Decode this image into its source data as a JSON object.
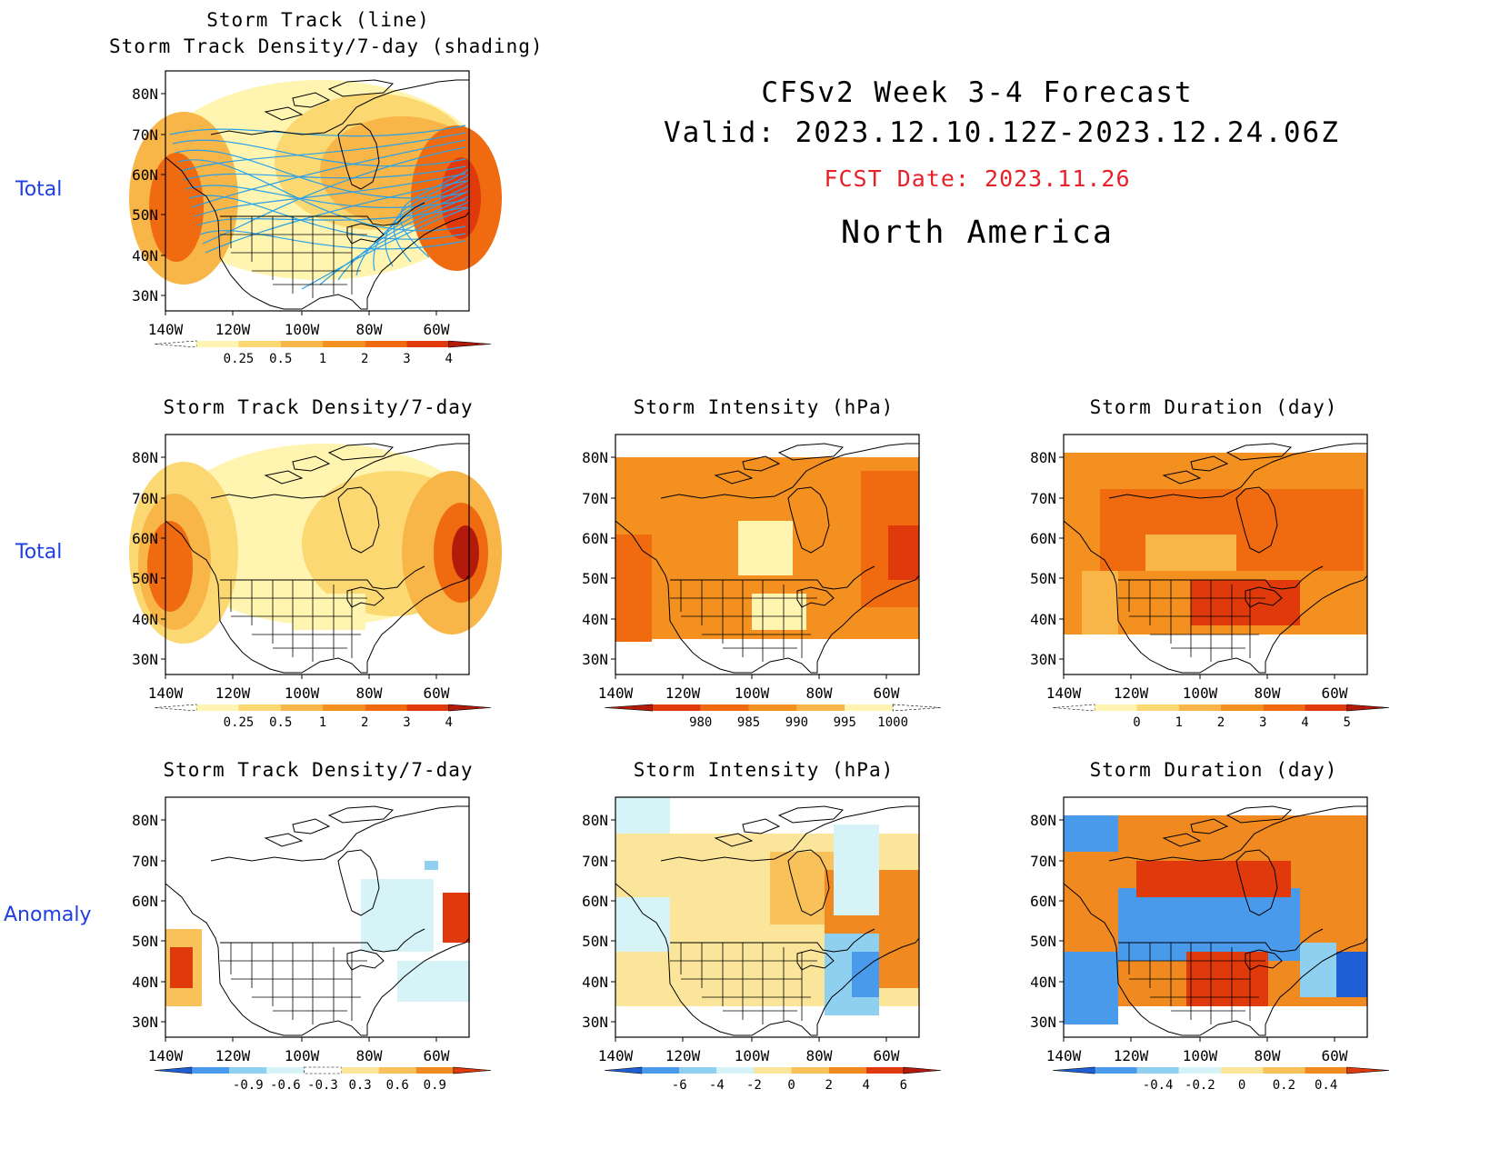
{
  "header": {
    "line1": "CFSv2 Week 3-4 Forecast",
    "line2": "Valid: 2023.12.10.12Z-2023.12.24.06Z",
    "fcst": "FCST Date: 2023.11.26",
    "region": "North America",
    "fcst_color": "#e8202a"
  },
  "rows": [
    {
      "label": "Total"
    },
    {
      "label": "Total"
    },
    {
      "label": "Anomaly"
    }
  ],
  "axes": {
    "lat_labels": [
      "80N",
      "70N",
      "60N",
      "50N",
      "40N",
      "30N"
    ],
    "lon_labels": [
      "140W",
      "120W",
      "100W",
      "80W",
      "60W"
    ]
  },
  "panels": [
    {
      "id": "p00",
      "title_lines": [
        "Storm Track (line)",
        "Storm Track Density/7-day (shading)"
      ],
      "colorbar": {
        "ticks": [
          "0.25",
          "0.5",
          "1",
          "2",
          "3",
          "4"
        ],
        "colors": [
          "#ffffff",
          "#fff5b0",
          "#fcd873",
          "#f8b548",
          "#f39020",
          "#f06a10",
          "#e03a0c",
          "#b31a0a"
        ]
      }
    },
    {
      "id": "p10",
      "title_lines": [
        "Storm Track Density/7-day"
      ],
      "colorbar": {
        "ticks": [
          "0.25",
          "0.5",
          "1",
          "2",
          "3",
          "4"
        ],
        "colors": [
          "#ffffff",
          "#fff5b0",
          "#fcd873",
          "#f8b548",
          "#f39020",
          "#f06a10",
          "#e03a0c",
          "#b31a0a"
        ]
      }
    },
    {
      "id": "p11",
      "title_lines": [
        "Storm Intensity (hPa)"
      ],
      "colorbar": {
        "ticks": [
          "980",
          "985",
          "990",
          "995",
          "1000"
        ],
        "colors": [
          "#b31a0a",
          "#e03a0c",
          "#f06a10",
          "#f39020",
          "#f8b548",
          "#fff5b0",
          "#ffffff"
        ]
      }
    },
    {
      "id": "p12",
      "title_lines": [
        "Storm Duration (day)"
      ],
      "colorbar": {
        "ticks": [
          "0",
          "1",
          "2",
          "3",
          "4",
          "5"
        ],
        "colors": [
          "#ffffff",
          "#fff5b0",
          "#fcd873",
          "#f8b548",
          "#f39020",
          "#f06a10",
          "#e03a0c",
          "#b31a0a"
        ]
      }
    },
    {
      "id": "p20",
      "title_lines": [
        "Storm Track Density/7-day"
      ],
      "colorbar": {
        "ticks": [
          "-0.9",
          "-0.6",
          "-0.3",
          "0.3",
          "0.6",
          "0.9"
        ],
        "colors": [
          "#1f5fd6",
          "#4a9aeb",
          "#8fd0f0",
          "#d6f3f7",
          "#ffffff",
          "#fbe59a",
          "#f9c15a",
          "#f08a20",
          "#e03a0c"
        ]
      }
    },
    {
      "id": "p21",
      "title_lines": [
        "Storm Intensity (hPa)"
      ],
      "colorbar": {
        "ticks": [
          "-6",
          "-4",
          "-2",
          "0",
          "2",
          "4",
          "6"
        ],
        "colors": [
          "#1f5fd6",
          "#4a9aeb",
          "#8fd0f0",
          "#d6f3f7",
          "#fbe59a",
          "#f9c15a",
          "#f08a20",
          "#e03a0c",
          "#b31a0a"
        ]
      }
    },
    {
      "id": "p22",
      "title_lines": [
        "Storm Duration (day)"
      ],
      "colorbar": {
        "ticks": [
          "-0.4",
          "-0.2",
          "0",
          "0.2",
          "0.4"
        ],
        "colors": [
          "#1f5fd6",
          "#4a9aeb",
          "#8fd0f0",
          "#d6f3f7",
          "#fbe59a",
          "#f9c15a",
          "#f08a20",
          "#e03a0c"
        ]
      }
    }
  ]
}
